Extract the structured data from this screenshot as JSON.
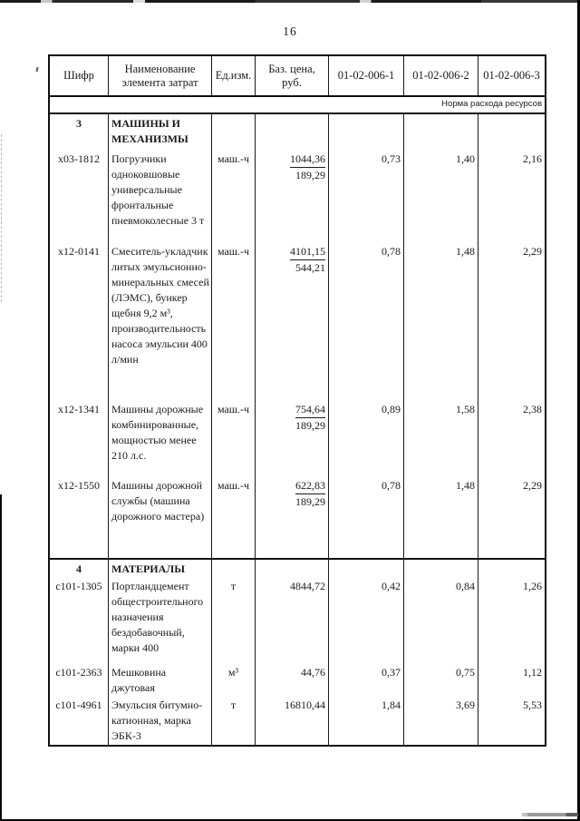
{
  "page": {
    "number": "16"
  },
  "colors": {
    "ink": "#1a1a1a",
    "paper": "#ffffff"
  },
  "table": {
    "headers": [
      "Шифр",
      "Наименование элемента затрат",
      "Ед.изм.",
      "Баз. цена, руб.",
      "01-02-006-1",
      "01-02-006-2",
      "01-02-006-3"
    ],
    "subheader": "Норма расхода ресурсов",
    "sections": [
      {
        "number": "3",
        "title": "МАШИНЫ И МЕХАНИЗМЫ",
        "rows": [
          {
            "code": "х03-1812",
            "name": "Погрузчики одноковшовые универсальные фронтальные пневмоколесные 3 т",
            "unit": "маш.-ч",
            "price_num": "1044,36",
            "price_den": "189,29",
            "v1": "0,73",
            "v2": "1,40",
            "v3": "2,16"
          },
          {
            "code": "х12-0141",
            "name": "Смеситель-укладчик литых эмульсионно-минеральных смесей (ЛЭМС), бункер щебня 9,2 м³, производительность насоса эмульсии 400 л/мин",
            "unit": "маш.-ч",
            "price_num": "4101,15",
            "price_den": "544,21",
            "v1": "0,78",
            "v2": "1,48",
            "v3": "2,29"
          },
          {
            "code": "х12-1341",
            "name": "Машины дорожные комбинированные, мощностью менее 210 л.с.",
            "unit": "маш.-ч",
            "price_num": "754,64",
            "price_den": "189,29",
            "v1": "0,89",
            "v2": "1,58",
            "v3": "2,38"
          },
          {
            "code": "х12-1550",
            "name": "Машины дорожной службы (машина дорожного мастера)",
            "unit": "маш.-ч",
            "price_num": "622,83",
            "price_den": "189,29",
            "v1": "0,78",
            "v2": "1,48",
            "v3": "2,29"
          }
        ]
      },
      {
        "number": "4",
        "title": "МАТЕРИАЛЫ",
        "rows": [
          {
            "code": "с101-1305",
            "name": "Портландцемент общестроительного назначения бездобавочный, марки 400",
            "unit": "т",
            "price_num": "4844,72",
            "price_den": "",
            "v1": "0,42",
            "v2": "0,84",
            "v3": "1,26"
          },
          {
            "code": "с101-2363",
            "name": "Мешковина джутовая",
            "unit": "м³",
            "price_num": "44,76",
            "price_den": "",
            "v1": "0,37",
            "v2": "0,75",
            "v3": "1,12"
          },
          {
            "code": "с101-4961",
            "name": "Эмульсия битумно-катионная, марка ЭБК-3",
            "unit": "т",
            "price_num": "16810,44",
            "price_den": "",
            "v1": "1,84",
            "v2": "3,69",
            "v3": "5,53"
          }
        ]
      }
    ]
  }
}
